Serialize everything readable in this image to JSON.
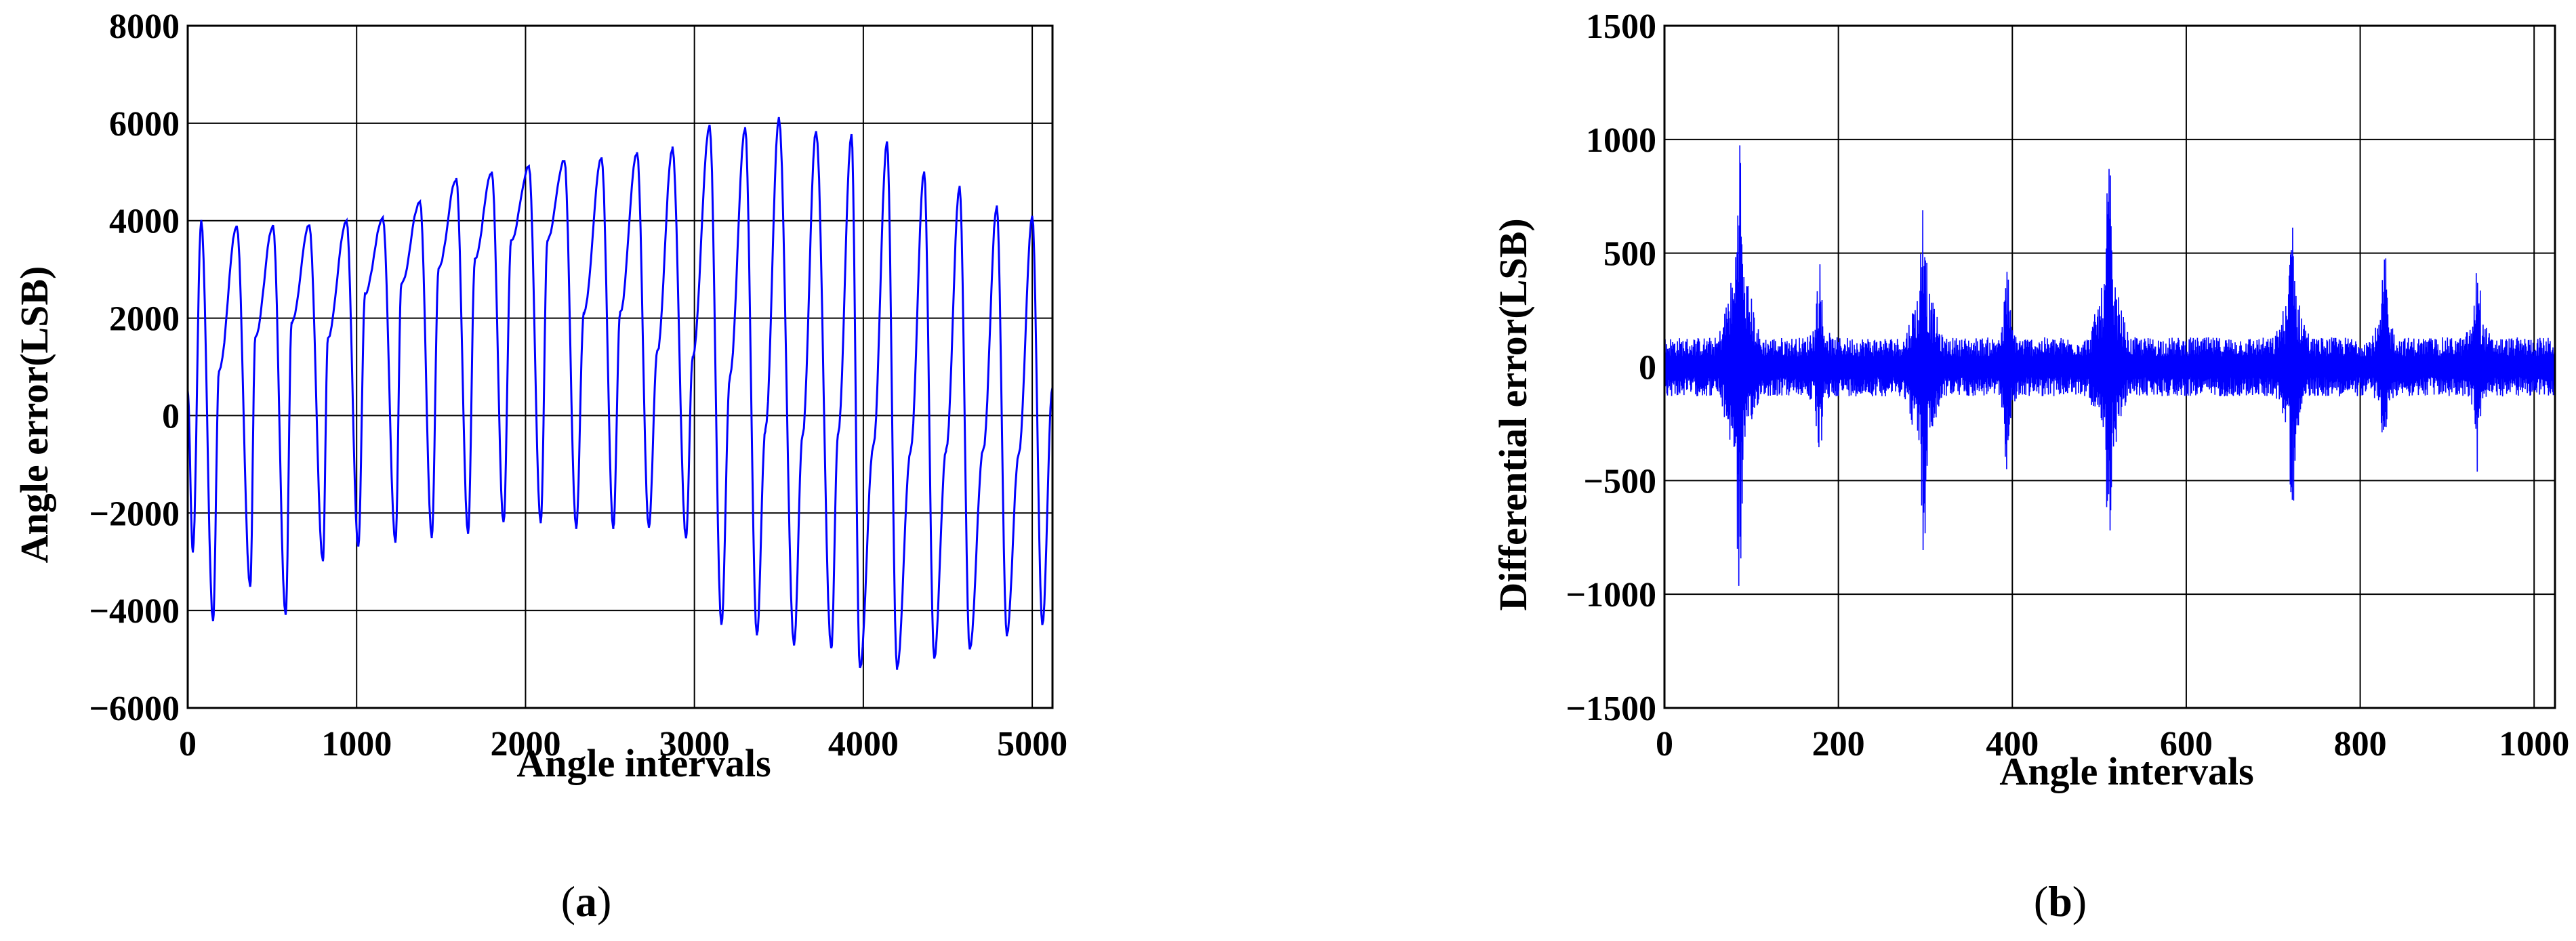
{
  "chart_data": [
    {
      "type": "line",
      "panel_label": "a",
      "xlabel": "Angle intervals",
      "ylabel": "Angle error(LSB)",
      "xlim": [
        0,
        5120
      ],
      "ylim": [
        -6000,
        8000
      ],
      "xticks": [
        0,
        1000,
        2000,
        3000,
        4000,
        5000
      ],
      "yticks": [
        -6000,
        -4000,
        -2000,
        0,
        2000,
        4000,
        6000,
        8000
      ],
      "xtick_labels": [
        "0",
        "1000",
        "2000",
        "3000",
        "4000",
        "5000"
      ],
      "ytick_labels": [
        "−6000",
        "−4000",
        "−2000",
        "0",
        "2000",
        "4000",
        "6000",
        "8000"
      ],
      "grid": true,
      "series": [
        {
          "color": "#0000ff",
          "peaks": [
            [
              80,
              4000
            ],
            [
              290,
              3900
            ],
            [
              505,
              3900
            ],
            [
              720,
              3900
            ],
            [
              940,
              4000
            ],
            [
              1155,
              4050
            ],
            [
              1375,
              4400
            ],
            [
              1590,
              4850
            ],
            [
              1800,
              5000
            ],
            [
              2020,
              5100
            ],
            [
              2230,
              5250
            ],
            [
              2450,
              5300
            ],
            [
              2660,
              5400
            ],
            [
              2870,
              5500
            ],
            [
              3090,
              5950
            ],
            [
              3300,
              5900
            ],
            [
              3500,
              6100
            ],
            [
              3720,
              5850
            ],
            [
              3930,
              5750
            ],
            [
              4140,
              5600
            ],
            [
              4360,
              5000
            ],
            [
              4570,
              4700
            ],
            [
              4790,
              4300
            ],
            [
              5000,
              4100
            ]
          ],
          "troughs": [
            [
              30,
              -2800
            ],
            [
              150,
              -4200
            ],
            [
              370,
              -3500
            ],
            [
              580,
              -4100
            ],
            [
              800,
              -3000
            ],
            [
              1010,
              -2700
            ],
            [
              1230,
              -2600
            ],
            [
              1445,
              -2500
            ],
            [
              1660,
              -2400
            ],
            [
              1870,
              -2200
            ],
            [
              2090,
              -2200
            ],
            [
              2300,
              -2300
            ],
            [
              2520,
              -2300
            ],
            [
              2730,
              -2300
            ],
            [
              2950,
              -2500
            ],
            [
              3160,
              -4300
            ],
            [
              3370,
              -4500
            ],
            [
              3590,
              -4700
            ],
            [
              3810,
              -4800
            ],
            [
              3980,
              -5200
            ],
            [
              4200,
              -5200
            ],
            [
              4420,
              -5000
            ],
            [
              4630,
              -4800
            ],
            [
              4850,
              -4500
            ],
            [
              5060,
              -4300
            ]
          ],
          "secondary_peaks": [
            [
              185,
              900
            ],
            [
              400,
              1600
            ],
            [
              615,
              1900
            ],
            [
              830,
              1600
            ],
            [
              1050,
              2500
            ],
            [
              1265,
              2700
            ],
            [
              1485,
              3000
            ],
            [
              1700,
              3200
            ],
            [
              1915,
              3600
            ],
            [
              2130,
              3600
            ],
            [
              2345,
              2100
            ],
            [
              2560,
              2100
            ],
            [
              2780,
              1300
            ],
            [
              2990,
              1200
            ],
            [
              3210,
              800
            ],
            [
              3420,
              -300
            ],
            [
              3640,
              -400
            ],
            [
              3850,
              -400
            ],
            [
              4060,
              -600
            ],
            [
              4280,
              -700
            ],
            [
              4490,
              -700
            ],
            [
              4710,
              -700
            ],
            [
              4920,
              -800
            ]
          ]
        }
      ]
    },
    {
      "type": "line",
      "panel_label": "b",
      "xlabel": "Angle intervals",
      "ylabel": "Differential error(LSB)",
      "xlim": [
        0,
        1024
      ],
      "ylim": [
        -1500,
        1500
      ],
      "xticks": [
        0,
        200,
        400,
        600,
        800,
        1000
      ],
      "yticks": [
        -1500,
        -1000,
        -500,
        0,
        500,
        1000,
        1500
      ],
      "xtick_labels": [
        "0",
        "200",
        "400",
        "600",
        "800",
        "1000"
      ],
      "ytick_labels": [
        "−1500",
        "−1000",
        "−500",
        "0",
        "500",
        "1000",
        "1500"
      ],
      "grid": true,
      "series": [
        {
          "color": "#0000ff",
          "baseline_amplitude": 130,
          "bursts": [
            {
              "x": 86,
              "upper": 1100,
              "lower": -1020
            },
            {
              "x": 178,
              "upper": 480,
              "lower": -460
            },
            {
              "x": 298,
              "upper": 860,
              "lower": -880
            },
            {
              "x": 394,
              "upper": 460,
              "lower": -480
            },
            {
              "x": 511,
              "upper": 960,
              "lower": -920
            },
            {
              "x": 722,
              "upper": 760,
              "lower": -680
            },
            {
              "x": 828,
              "upper": 520,
              "lower": -440
            },
            {
              "x": 935,
              "upper": 520,
              "lower": -480
            }
          ]
        }
      ]
    }
  ],
  "captions": {
    "a": {
      "open": "(",
      "letter": "a",
      "close": ")"
    },
    "b": {
      "open": "(",
      "letter": "b",
      "close": ")"
    }
  }
}
